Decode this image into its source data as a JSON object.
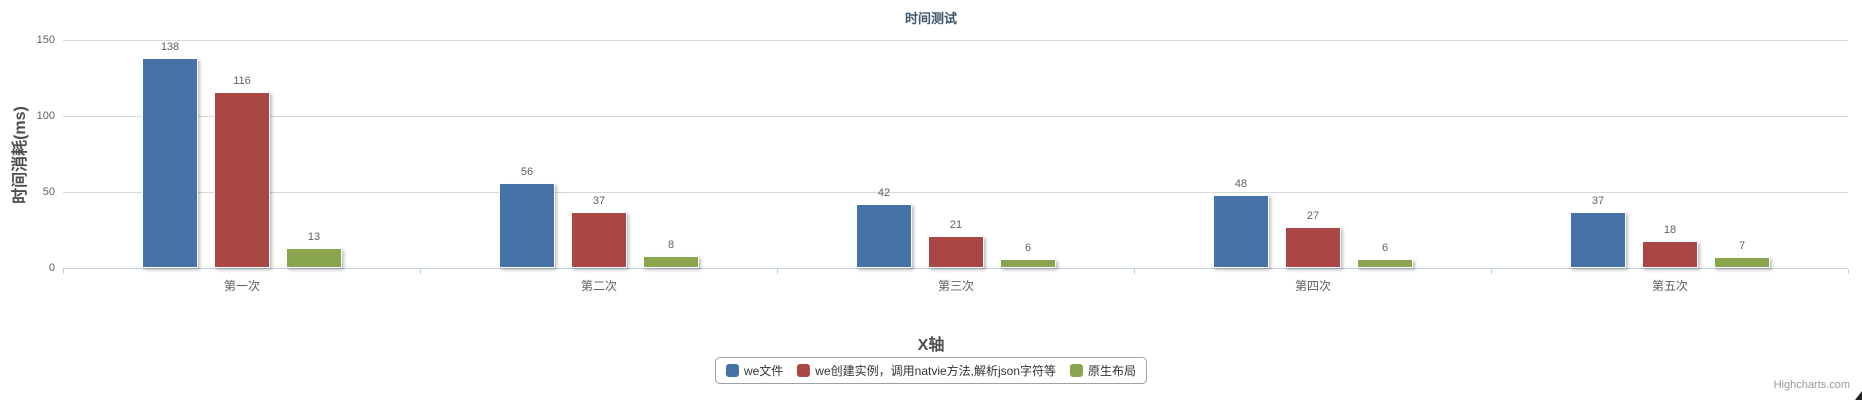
{
  "chart_data": {
    "type": "bar",
    "orientation": "vertical",
    "title": "时间测试",
    "xlabel": "X轴",
    "ylabel": "时间消耗(ms)",
    "categories": [
      "第一次",
      "第二次",
      "第三次",
      "第四次",
      "第五次"
    ],
    "series": [
      {
        "name": "we文件",
        "color": "#4572A7",
        "values": [
          138,
          56,
          42,
          48,
          37
        ]
      },
      {
        "name": "we创建实例，调用natvie方法,解析json字符等",
        "color": "#AA4643",
        "values": [
          116,
          37,
          21,
          27,
          18
        ]
      },
      {
        "name": "原生布局",
        "color": "#89A54E",
        "values": [
          13,
          8,
          6,
          6,
          7
        ]
      }
    ],
    "ylim": [
      0,
      150
    ],
    "yticks": [
      0,
      50,
      100,
      150
    ],
    "grid": true,
    "data_labels": true,
    "legend_position": "bottom"
  },
  "credits": {
    "label": "Highcharts.com"
  }
}
